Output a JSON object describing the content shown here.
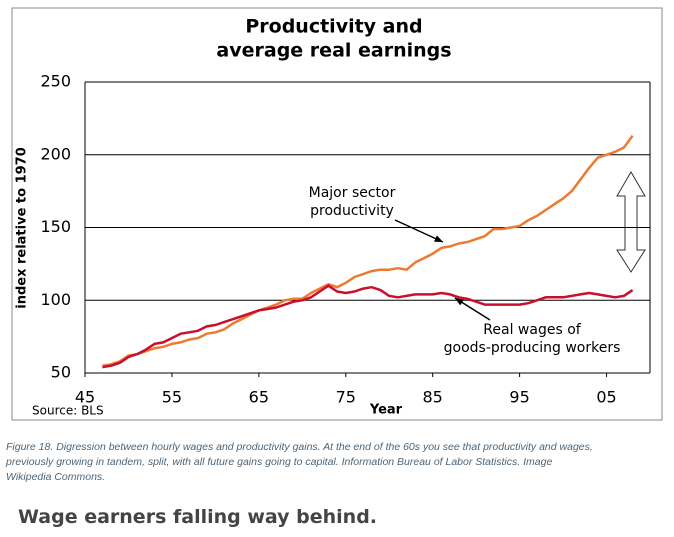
{
  "chart_data": {
    "type": "line",
    "title": [
      "Productivity and",
      "average real earnings"
    ],
    "ylabel": "index relative to 1970",
    "xlabel": "Year",
    "source": "Source: BLS",
    "x": [
      1947,
      1948,
      1949,
      1950,
      1951,
      1952,
      1953,
      1954,
      1955,
      1956,
      1957,
      1958,
      1959,
      1960,
      1961,
      1962,
      1963,
      1964,
      1965,
      1966,
      1967,
      1968,
      1969,
      1970,
      1971,
      1972,
      1973,
      1974,
      1975,
      1976,
      1977,
      1978,
      1979,
      1980,
      1981,
      1982,
      1983,
      1984,
      1985,
      1986,
      1987,
      1988,
      1989,
      1990,
      1991,
      1992,
      1993,
      1994,
      1995,
      1996,
      1997,
      1998,
      1999,
      2000,
      2001,
      2002,
      2003,
      2004,
      2005,
      2006,
      2007,
      2008
    ],
    "series": [
      {
        "name": "Major sector productivity",
        "color": "#ec7a30",
        "values": [
          55,
          56,
          58,
          62,
          63,
          65,
          67,
          68,
          70,
          71,
          73,
          74,
          77,
          78,
          80,
          84,
          87,
          90,
          93,
          95,
          97,
          100,
          101,
          101,
          105,
          108,
          111,
          109,
          112,
          116,
          118,
          120,
          121,
          121,
          122,
          121,
          126,
          129,
          132,
          136,
          137,
          139,
          140,
          142,
          144,
          149,
          149,
          150,
          151,
          155,
          158,
          162,
          166,
          170,
          175,
          183,
          191,
          198,
          200,
          202,
          205,
          213
        ]
      },
      {
        "name": "Real wages of goods-producing workers",
        "color": "#c8102e",
        "values": [
          54,
          55,
          57,
          61,
          63,
          66,
          70,
          71,
          74,
          77,
          78,
          79,
          82,
          83,
          85,
          87,
          89,
          91,
          93,
          94,
          95,
          97,
          99,
          100,
          102,
          106,
          110,
          106,
          105,
          106,
          108,
          109,
          107,
          103,
          102,
          103,
          104,
          104,
          104,
          105,
          104,
          102,
          101,
          99,
          97,
          97,
          97,
          97,
          97,
          98,
          100,
          102,
          102,
          102,
          103,
          104,
          105,
          104,
          103,
          102,
          103,
          107
        ]
      }
    ],
    "annotations": [
      {
        "lines": [
          "Major sector",
          "productivity"
        ],
        "series": 0
      },
      {
        "lines": [
          "Real wages of",
          "goods-producing workers"
        ],
        "series": 1
      }
    ],
    "xlim": [
      1945,
      2010
    ],
    "xticks": [
      {
        "value": 1945,
        "label": "45"
      },
      {
        "value": 1955,
        "label": "55"
      },
      {
        "value": 1965,
        "label": "65"
      },
      {
        "value": 1975,
        "label": "75"
      },
      {
        "value": 1985,
        "label": "85"
      },
      {
        "value": 1995,
        "label": "95"
      },
      {
        "value": 2005,
        "label": "05"
      }
    ],
    "ylim": [
      50,
      250
    ],
    "yticks": [
      50,
      100,
      150,
      200,
      250
    ],
    "grid": true
  },
  "caption": [
    "Figure 18. Digression between hourly wages and productivity gains. At the end of the 60s you see that productivity and wages,",
    "previously growing in tandem, split, with all future gains going to capital. Information Bureau of Labor Statistics. Image",
    "Wikipedia Commons."
  ],
  "heading": "Wage earners falling way behind."
}
